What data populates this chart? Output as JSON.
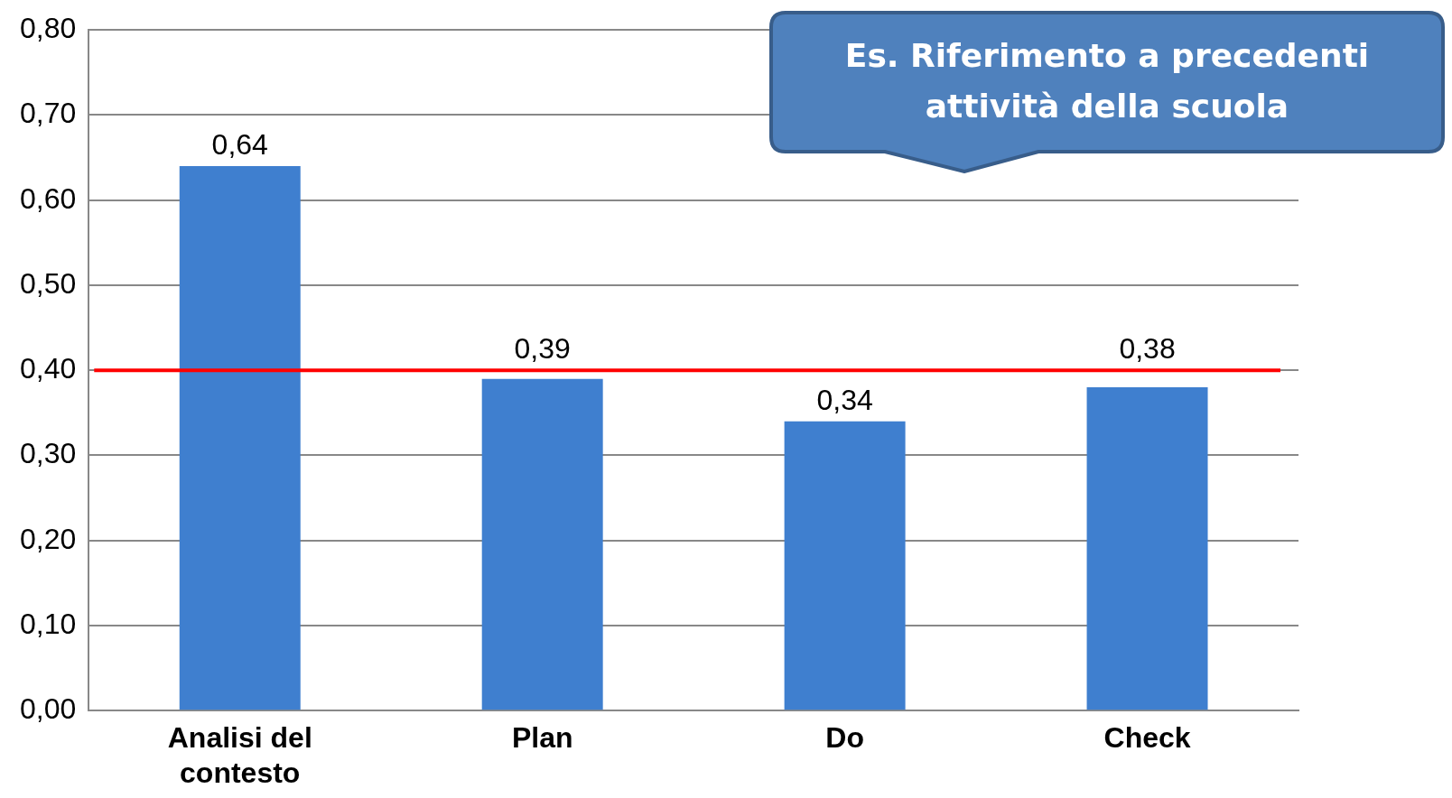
{
  "chart_data": {
    "type": "bar",
    "categories": [
      "Analisi del contesto",
      "Plan",
      "Do",
      "Check"
    ],
    "series": [
      {
        "color": "#3f7fcf",
        "values": [
          0.64,
          0.39,
          0.34,
          0.38
        ],
        "value_labels": [
          "0,64",
          "0,39",
          "0,34",
          "0,38"
        ]
      }
    ],
    "ylim": [
      0,
      0.8
    ],
    "yticks": [
      {
        "value": 0,
        "label": "0,00"
      },
      {
        "value": 0.1,
        "label": "0,10"
      },
      {
        "value": 0.2,
        "label": "0,20"
      },
      {
        "value": 0.3,
        "label": "0,30"
      },
      {
        "value": 0.4,
        "label": "0,40"
      },
      {
        "value": 0.5,
        "label": "0,50"
      },
      {
        "value": 0.6,
        "label": "0,60"
      },
      {
        "value": 0.7,
        "label": "0,70"
      },
      {
        "value": 0.8,
        "label": "0,80"
      }
    ],
    "grid": "y",
    "ref_lines": [
      {
        "axis": "y",
        "value": 0.4,
        "color": "#ff0000"
      }
    ],
    "annotations": [
      "Es. Riferimento a precedenti attività della scuola"
    ]
  }
}
